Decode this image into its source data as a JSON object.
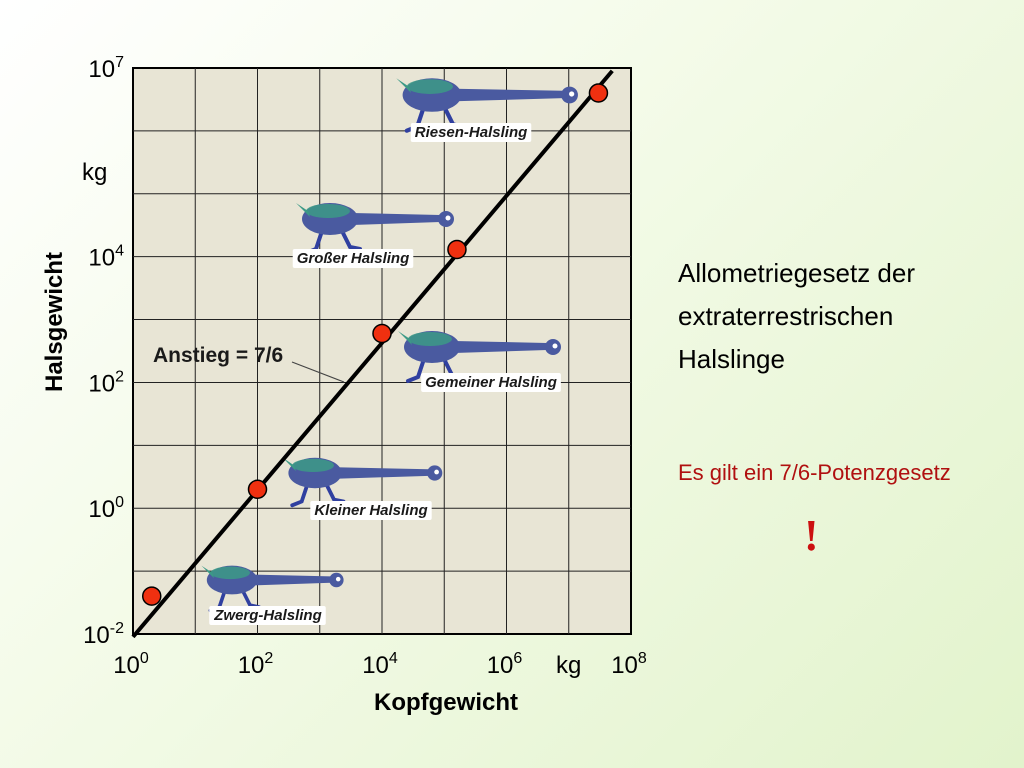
{
  "chart_data": {
    "type": "scatter",
    "x_scale": "log",
    "y_scale": "log",
    "xlim": [
      1,
      100000000
    ],
    "ylim": [
      0.01,
      10000000
    ],
    "xlabel": "Kopfgewicht",
    "ylabel": "Halsgewicht",
    "x_ticks": [
      {
        "base": "10",
        "exp": "0",
        "value": 1
      },
      {
        "base": "10",
        "exp": "2",
        "value": 100
      },
      {
        "base": "10",
        "exp": "4",
        "value": 10000
      },
      {
        "base": "10",
        "exp": "6",
        "value": 1000000
      },
      {
        "base": "10",
        "exp": "8",
        "value": 100000000
      }
    ],
    "y_ticks": [
      {
        "base": "10",
        "exp": "-2",
        "value": 0.01
      },
      {
        "base": "10",
        "exp": "0",
        "value": 1
      },
      {
        "base": "10",
        "exp": "2",
        "value": 100
      },
      {
        "base": "10",
        "exp": "4",
        "value": 10000
      },
      {
        "base": "10",
        "exp": "7",
        "value": 10000000
      }
    ],
    "x_unit": "kg",
    "y_unit": "kg",
    "points": [
      {
        "x": 2,
        "y": 0.04,
        "label": "Zwerg-Halsling"
      },
      {
        "x": 100,
        "y": 2,
        "label": "Kleiner Halsling"
      },
      {
        "x": 10000,
        "y": 600,
        "label": "Gemeiner Halsling"
      },
      {
        "x": 160000,
        "y": 13000,
        "label": "Großer Halsling"
      },
      {
        "x": 30000000,
        "y": 4000000,
        "label": "Riesen-Halsling"
      }
    ],
    "fit_line": {
      "x": [
        1,
        50000000
      ],
      "y": [
        0.009,
        9000000
      ],
      "label": "Anstieg = 7/6"
    },
    "grid": true
  },
  "side": {
    "title_lines": [
      "Allometriegesetz der",
      "extraterrestrischen",
      "Halslinge"
    ],
    "note": "Es gilt ein 7/6-Potenzgesetz",
    "exclaim": "!"
  },
  "colors": {
    "plot_bg": "#e8e5d5",
    "grid": "#222222",
    "point_fill": "#f03010",
    "line": "#000000",
    "creature_body": "#4a5aa0",
    "creature_dorsal": "#3c9a86",
    "creature_legs": "#3040a0"
  }
}
